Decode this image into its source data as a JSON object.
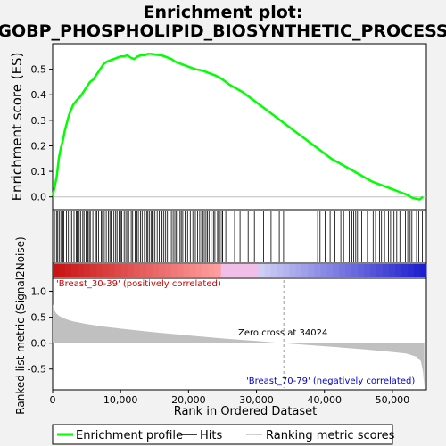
{
  "chart_data": {
    "type": "line",
    "title_line1": "Enrichment plot:",
    "title_line2": "GOBP_PHOSPHOLIPID_BIOSYNTHETIC_PROCESS",
    "ylabel_top": "Enrichment score (ES)",
    "ylabel_bottom": "Ranked list metric (Signal2Noise)",
    "xlabel": "Rank in Ordered Dataset",
    "x_range": [
      0,
      55000
    ],
    "es_ylim": [
      -0.05,
      0.6
    ],
    "metric_ylim": [
      -0.9,
      1.25
    ],
    "es_yticks": [
      "0.0",
      "0.1",
      "0.2",
      "0.3",
      "0.4",
      "0.5"
    ],
    "metric_yticks": [
      "-0.5",
      "0.0",
      "0.5",
      "1.0"
    ],
    "xticks": [
      "0",
      "10,000",
      "20,000",
      "30,000",
      "40,000",
      "50,000"
    ],
    "xtick_values": [
      0,
      10000,
      20000,
      30000,
      40000,
      50000
    ],
    "es_ytick_values": [
      0,
      0.1,
      0.2,
      0.3,
      0.4,
      0.5
    ],
    "metric_ytick_values": [
      -0.5,
      0,
      0.5,
      1.0
    ],
    "series": [
      {
        "name": "Enrichment profile",
        "color": "#00ff00",
        "x": [
          0,
          300,
          600,
          900,
          1200,
          1500,
          1800,
          2100,
          2400,
          2700,
          3000,
          3300,
          3600,
          4000,
          4500,
          5000,
          5500,
          6000,
          6500,
          7000,
          7500,
          8000,
          8500,
          9000,
          9500,
          10000,
          10500,
          11000,
          11500,
          12000,
          12500,
          13000,
          13500,
          14000,
          14500,
          15000,
          15500,
          16000,
          16500,
          17000,
          17500,
          18000,
          19000,
          20000,
          21000,
          22000,
          23000,
          24000,
          25000,
          26000,
          27000,
          28000,
          29000,
          30000,
          31000,
          32000,
          33000,
          34000,
          35000,
          36000,
          37000,
          38000,
          39000,
          40000,
          41000,
          42000,
          43000,
          44000,
          45000,
          46000,
          47000,
          48000,
          49000,
          50000,
          51000,
          52000,
          53000,
          54000,
          54500
        ],
        "y": [
          0.0,
          0.04,
          0.08,
          0.15,
          0.19,
          0.22,
          0.26,
          0.29,
          0.32,
          0.34,
          0.36,
          0.37,
          0.38,
          0.39,
          0.41,
          0.43,
          0.45,
          0.46,
          0.48,
          0.5,
          0.52,
          0.53,
          0.535,
          0.54,
          0.545,
          0.55,
          0.55,
          0.555,
          0.545,
          0.54,
          0.55,
          0.555,
          0.555,
          0.56,
          0.56,
          0.558,
          0.556,
          0.555,
          0.55,
          0.545,
          0.54,
          0.53,
          0.52,
          0.51,
          0.5,
          0.495,
          0.485,
          0.475,
          0.46,
          0.44,
          0.425,
          0.41,
          0.39,
          0.37,
          0.35,
          0.33,
          0.31,
          0.29,
          0.27,
          0.25,
          0.23,
          0.21,
          0.19,
          0.17,
          0.15,
          0.135,
          0.12,
          0.105,
          0.09,
          0.075,
          0.06,
          0.05,
          0.04,
          0.03,
          0.02,
          0.01,
          -0.005,
          -0.01,
          0.0
        ]
      },
      {
        "name": "Hits",
        "color": "#000000"
      },
      {
        "name": "Ranking metric scores",
        "color": "#c0c0c0",
        "x": [
          0,
          200,
          500,
          1000,
          2000,
          3000,
          5000,
          7500,
          10000,
          15000,
          20000,
          25000,
          30000,
          34024,
          38000,
          42000,
          46000,
          50000,
          52000,
          53500,
          54200,
          54500,
          54700
        ],
        "y": [
          0.75,
          0.65,
          0.58,
          0.52,
          0.46,
          0.42,
          0.37,
          0.32,
          0.28,
          0.21,
          0.15,
          0.09,
          0.04,
          0.0,
          -0.04,
          -0.08,
          -0.12,
          -0.17,
          -0.2,
          -0.26,
          -0.35,
          -0.55,
          -0.85
        ]
      }
    ],
    "positive_label": "'Breast_30-39' (positively correlated)",
    "negative_label": "'Breast_70-79' (negatively correlated)",
    "zero_cross_label": "Zero cross at 34024",
    "zero_cross": 34024,
    "positive_color": "#cc0000",
    "negative_color": "#0000cc",
    "legend_position": "bottom"
  }
}
